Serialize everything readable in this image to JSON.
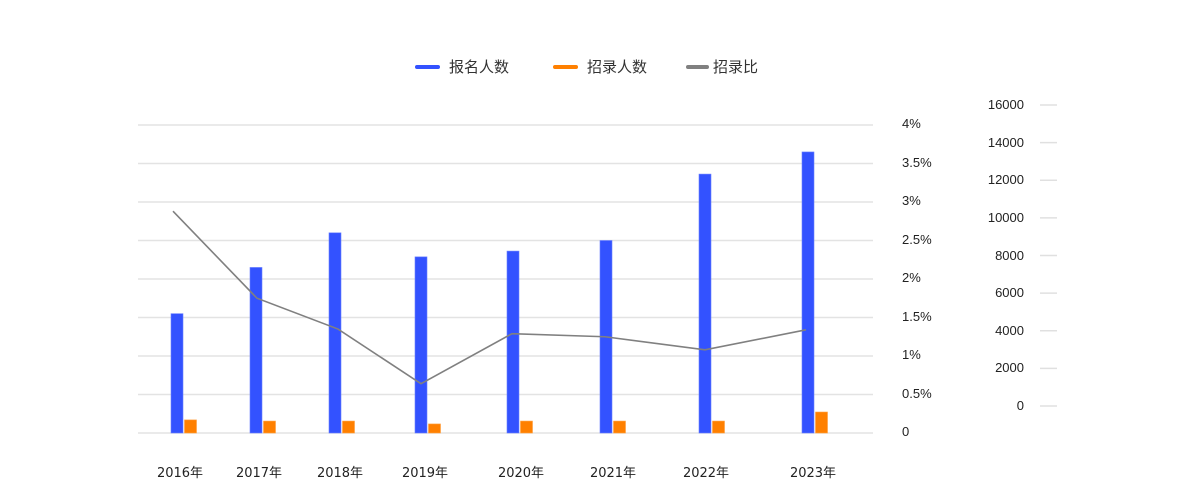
{
  "chart_data": {
    "type": "bar",
    "title": "",
    "categories": [
      "2016年",
      "2017年",
      "2018年",
      "2019年",
      "2020年",
      "2021年",
      "2022年",
      "2023年"
    ],
    "series": [
      {
        "name": "报名人数",
        "type": "bar",
        "axis": "right",
        "color": "#3352ff",
        "values": [
          6200,
          8600,
          10400,
          9150,
          9450,
          10000,
          13450,
          14600
        ]
      },
      {
        "name": "招录人数",
        "type": "bar",
        "axis": "right",
        "color": "#ff8000",
        "values": [
          680,
          620,
          620,
          470,
          620,
          620,
          620,
          1090
        ]
      },
      {
        "name": "招录比",
        "type": "line",
        "axis": "left",
        "color": "#808080",
        "unit": "%",
        "values": [
          2.88,
          1.75,
          1.35,
          0.64,
          1.29,
          1.25,
          1.08,
          1.34
        ]
      }
    ],
    "left_axis": {
      "ticks": [
        "0",
        "0.5%",
        "1%",
        "1.5%",
        "2%",
        "2.5%",
        "3%",
        "3.5%",
        "4%"
      ],
      "range": [
        0,
        4
      ]
    },
    "right_axis": {
      "ticks": [
        "0",
        "2000",
        "4000",
        "6000",
        "8000",
        "10000",
        "12000",
        "14000",
        "16000"
      ],
      "range": [
        0,
        16000
      ]
    },
    "xlabel": "",
    "ylabel": "",
    "grid": true,
    "legend_position": "top"
  },
  "legend": [
    {
      "label": "报名人数",
      "color": "#3352ff"
    },
    {
      "label": "招录人数",
      "color": "#ff8000"
    },
    {
      "label": "招录比",
      "color": "#808080"
    }
  ]
}
